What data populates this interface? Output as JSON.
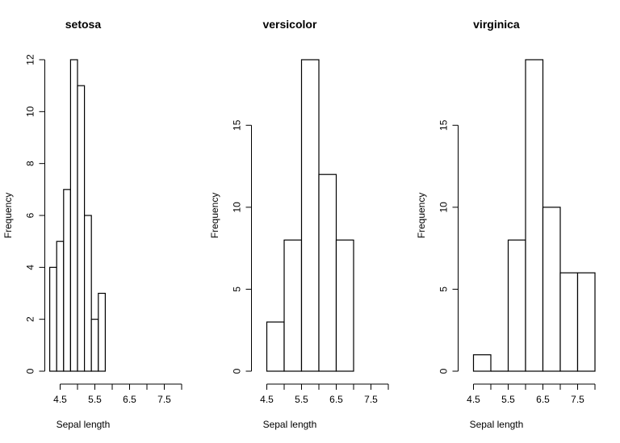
{
  "chart_data": [
    {
      "type": "bar",
      "title": "setosa",
      "xlabel": "Sepal length",
      "ylabel": "Frequency",
      "bin_edges": [
        4.2,
        4.4,
        4.6,
        4.8,
        5.0,
        5.2,
        5.4,
        5.6,
        5.8
      ],
      "values": [
        4,
        5,
        7,
        12,
        11,
        6,
        2,
        3
      ],
      "xlim": [
        4.5,
        8
      ],
      "x_ticks": [
        4.5,
        5,
        5.5,
        6,
        6.5,
        7,
        7.5,
        8
      ],
      "x_tick_labels": [
        "4.5",
        "5.5",
        "6.5",
        "7.5"
      ],
      "ylim": [
        0,
        12
      ],
      "y_ticks": [
        0,
        2,
        4,
        6,
        8,
        10,
        12
      ],
      "grid": false
    },
    {
      "type": "bar",
      "title": "versicolor",
      "xlabel": "Sepal length",
      "ylabel": "Frequency",
      "bin_edges": [
        4.5,
        5.0,
        5.5,
        6.0,
        6.5,
        7.0
      ],
      "values": [
        3,
        8,
        19,
        12,
        8
      ],
      "xlim": [
        4.5,
        8
      ],
      "x_ticks": [
        4.5,
        5,
        5.5,
        6,
        6.5,
        7,
        7.5,
        8
      ],
      "x_tick_labels": [
        "4.5",
        "5.5",
        "6.5",
        "7.5"
      ],
      "ylim": [
        0,
        19
      ],
      "y_ticks": [
        0,
        5,
        10,
        15
      ],
      "grid": false
    },
    {
      "type": "bar",
      "title": "virginica",
      "xlabel": "Sepal length",
      "ylabel": "Frequency",
      "bin_edges": [
        4.5,
        5.0,
        5.5,
        6.0,
        6.5,
        7.0,
        7.5,
        8.0
      ],
      "values": [
        1,
        0,
        8,
        19,
        10,
        6,
        6
      ],
      "xlim": [
        4.5,
        8
      ],
      "x_ticks": [
        4.5,
        5,
        5.5,
        6,
        6.5,
        7,
        7.5,
        8
      ],
      "x_tick_labels": [
        "4.5",
        "5.5",
        "6.5",
        "7.5"
      ],
      "ylim": [
        0,
        19
      ],
      "y_ticks": [
        0,
        5,
        10,
        15
      ],
      "grid": false
    }
  ]
}
